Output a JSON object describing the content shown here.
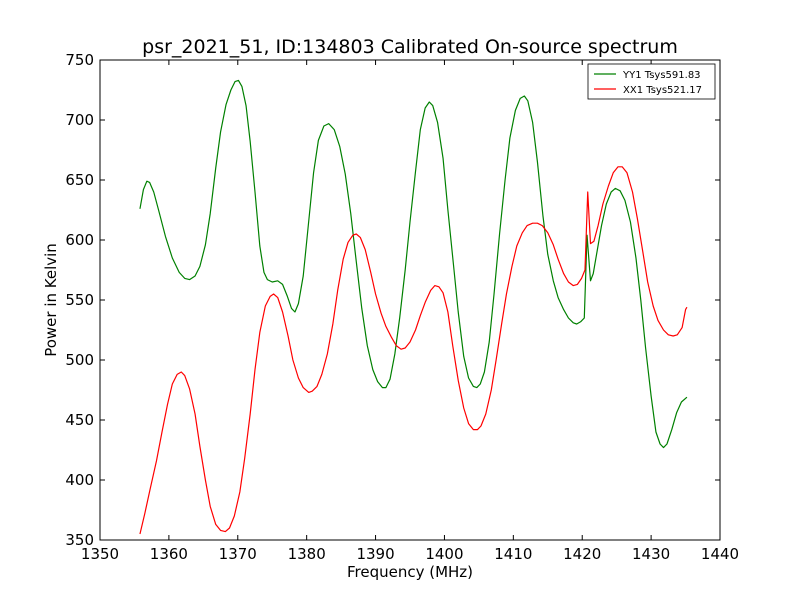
{
  "chart_data": {
    "type": "line",
    "title": "psr_2021_51, ID:134803 Calibrated On-source spectrum",
    "xlabel": "Frequency (MHz)",
    "ylabel": "Power in Kelvin",
    "xlim": [
      1350,
      1440
    ],
    "ylim": [
      350,
      750
    ],
    "xticks": [
      1350,
      1360,
      1370,
      1380,
      1390,
      1400,
      1410,
      1420,
      1430,
      1440
    ],
    "yticks": [
      350,
      400,
      450,
      500,
      550,
      600,
      650,
      700,
      750
    ],
    "grid": false,
    "legend_position": "top-right",
    "series": [
      {
        "name": "YY1 Tsys591.83",
        "color": "#008000",
        "points": [
          [
            1355.8,
            626
          ],
          [
            1356.3,
            642
          ],
          [
            1356.8,
            649
          ],
          [
            1357.2,
            648
          ],
          [
            1357.8,
            640
          ],
          [
            1358.5,
            625
          ],
          [
            1359.5,
            603
          ],
          [
            1360.5,
            585
          ],
          [
            1361.5,
            573
          ],
          [
            1362.3,
            568
          ],
          [
            1363.0,
            567
          ],
          [
            1363.8,
            570
          ],
          [
            1364.5,
            578
          ],
          [
            1365.3,
            596
          ],
          [
            1366.0,
            622
          ],
          [
            1366.8,
            660
          ],
          [
            1367.5,
            690
          ],
          [
            1368.3,
            713
          ],
          [
            1369.0,
            725
          ],
          [
            1369.6,
            732
          ],
          [
            1370.1,
            733
          ],
          [
            1370.6,
            728
          ],
          [
            1371.2,
            712
          ],
          [
            1371.8,
            682
          ],
          [
            1372.5,
            640
          ],
          [
            1373.2,
            595
          ],
          [
            1373.8,
            573
          ],
          [
            1374.3,
            567
          ],
          [
            1375.0,
            565
          ],
          [
            1375.8,
            566
          ],
          [
            1376.5,
            563
          ],
          [
            1377.2,
            553
          ],
          [
            1377.8,
            543
          ],
          [
            1378.3,
            540
          ],
          [
            1378.8,
            547
          ],
          [
            1379.5,
            570
          ],
          [
            1380.2,
            610
          ],
          [
            1381.0,
            656
          ],
          [
            1381.7,
            683
          ],
          [
            1382.5,
            695
          ],
          [
            1383.2,
            697
          ],
          [
            1384.0,
            692
          ],
          [
            1384.8,
            678
          ],
          [
            1385.6,
            655
          ],
          [
            1386.4,
            622
          ],
          [
            1387.2,
            582
          ],
          [
            1388.0,
            543
          ],
          [
            1388.8,
            512
          ],
          [
            1389.6,
            492
          ],
          [
            1390.3,
            482
          ],
          [
            1391.0,
            477
          ],
          [
            1391.5,
            477
          ],
          [
            1392.1,
            484
          ],
          [
            1392.8,
            505
          ],
          [
            1393.5,
            535
          ],
          [
            1394.3,
            575
          ],
          [
            1395.0,
            615
          ],
          [
            1395.8,
            657
          ],
          [
            1396.5,
            692
          ],
          [
            1397.2,
            710
          ],
          [
            1397.8,
            715
          ],
          [
            1398.3,
            712
          ],
          [
            1399.0,
            698
          ],
          [
            1399.8,
            668
          ],
          [
            1400.5,
            625
          ],
          [
            1401.3,
            580
          ],
          [
            1402.0,
            540
          ],
          [
            1402.8,
            503
          ],
          [
            1403.5,
            485
          ],
          [
            1404.2,
            478
          ],
          [
            1404.7,
            477
          ],
          [
            1405.2,
            480
          ],
          [
            1405.8,
            490
          ],
          [
            1406.5,
            515
          ],
          [
            1407.2,
            555
          ],
          [
            1408.0,
            605
          ],
          [
            1408.8,
            650
          ],
          [
            1409.5,
            685
          ],
          [
            1410.3,
            708
          ],
          [
            1411.0,
            718
          ],
          [
            1411.6,
            720
          ],
          [
            1412.1,
            716
          ],
          [
            1412.8,
            698
          ],
          [
            1413.5,
            665
          ],
          [
            1414.3,
            620
          ],
          [
            1415.0,
            588
          ],
          [
            1415.8,
            566
          ],
          [
            1416.5,
            552
          ],
          [
            1417.3,
            542
          ],
          [
            1418.0,
            535
          ],
          [
            1418.7,
            531
          ],
          [
            1419.2,
            530
          ],
          [
            1419.8,
            532
          ],
          [
            1420.3,
            535
          ],
          [
            1420.7,
            604
          ],
          [
            1421.2,
            566
          ],
          [
            1421.6,
            572
          ],
          [
            1422.2,
            592
          ],
          [
            1422.8,
            612
          ],
          [
            1423.5,
            630
          ],
          [
            1424.2,
            640
          ],
          [
            1424.8,
            643
          ],
          [
            1425.5,
            641
          ],
          [
            1426.2,
            633
          ],
          [
            1427.0,
            615
          ],
          [
            1427.8,
            585
          ],
          [
            1428.5,
            550
          ],
          [
            1429.2,
            510
          ],
          [
            1430.0,
            470
          ],
          [
            1430.7,
            440
          ],
          [
            1431.3,
            430
          ],
          [
            1431.8,
            427
          ],
          [
            1432.3,
            430
          ],
          [
            1433.0,
            442
          ],
          [
            1433.7,
            456
          ],
          [
            1434.4,
            465
          ],
          [
            1435.2,
            469
          ]
        ]
      },
      {
        "name": "XX1 Tsys521.17",
        "color": "#ff0000",
        "points": [
          [
            1355.8,
            355
          ],
          [
            1356.5,
            372
          ],
          [
            1357.3,
            393
          ],
          [
            1358.2,
            416
          ],
          [
            1359.0,
            440
          ],
          [
            1359.8,
            463
          ],
          [
            1360.5,
            480
          ],
          [
            1361.2,
            488
          ],
          [
            1361.8,
            490
          ],
          [
            1362.3,
            487
          ],
          [
            1363.0,
            476
          ],
          [
            1363.8,
            455
          ],
          [
            1364.5,
            428
          ],
          [
            1365.3,
            400
          ],
          [
            1366.0,
            378
          ],
          [
            1366.8,
            363
          ],
          [
            1367.5,
            358
          ],
          [
            1368.2,
            357
          ],
          [
            1368.8,
            360
          ],
          [
            1369.5,
            370
          ],
          [
            1370.3,
            390
          ],
          [
            1371.0,
            418
          ],
          [
            1371.8,
            455
          ],
          [
            1372.5,
            492
          ],
          [
            1373.2,
            523
          ],
          [
            1374.0,
            545
          ],
          [
            1374.7,
            553
          ],
          [
            1375.2,
            555
          ],
          [
            1375.8,
            552
          ],
          [
            1376.5,
            540
          ],
          [
            1377.3,
            520
          ],
          [
            1378.0,
            500
          ],
          [
            1378.8,
            485
          ],
          [
            1379.5,
            477
          ],
          [
            1380.3,
            473
          ],
          [
            1380.8,
            474
          ],
          [
            1381.5,
            478
          ],
          [
            1382.2,
            488
          ],
          [
            1383.0,
            505
          ],
          [
            1383.8,
            530
          ],
          [
            1384.5,
            558
          ],
          [
            1385.3,
            584
          ],
          [
            1386.0,
            598
          ],
          [
            1386.7,
            604
          ],
          [
            1387.2,
            605
          ],
          [
            1387.8,
            602
          ],
          [
            1388.5,
            592
          ],
          [
            1389.3,
            573
          ],
          [
            1390.0,
            555
          ],
          [
            1390.8,
            539
          ],
          [
            1391.5,
            528
          ],
          [
            1392.3,
            519
          ],
          [
            1393.0,
            512
          ],
          [
            1393.7,
            509
          ],
          [
            1394.3,
            510
          ],
          [
            1395.0,
            515
          ],
          [
            1395.8,
            525
          ],
          [
            1396.5,
            537
          ],
          [
            1397.2,
            548
          ],
          [
            1398.0,
            558
          ],
          [
            1398.6,
            562
          ],
          [
            1399.2,
            561
          ],
          [
            1399.8,
            556
          ],
          [
            1400.5,
            540
          ],
          [
            1401.2,
            512
          ],
          [
            1402.0,
            483
          ],
          [
            1402.8,
            460
          ],
          [
            1403.5,
            447
          ],
          [
            1404.2,
            442
          ],
          [
            1404.8,
            442
          ],
          [
            1405.3,
            445
          ],
          [
            1406.0,
            455
          ],
          [
            1406.8,
            475
          ],
          [
            1407.5,
            500
          ],
          [
            1408.3,
            530
          ],
          [
            1409.0,
            555
          ],
          [
            1409.8,
            578
          ],
          [
            1410.5,
            595
          ],
          [
            1411.3,
            606
          ],
          [
            1412.0,
            612
          ],
          [
            1412.8,
            614
          ],
          [
            1413.5,
            614
          ],
          [
            1414.2,
            612
          ],
          [
            1415.0,
            606
          ],
          [
            1415.8,
            596
          ],
          [
            1416.5,
            584
          ],
          [
            1417.3,
            572
          ],
          [
            1418.0,
            565
          ],
          [
            1418.7,
            562
          ],
          [
            1419.3,
            563
          ],
          [
            1419.9,
            568
          ],
          [
            1420.4,
            575
          ],
          [
            1420.8,
            640
          ],
          [
            1421.2,
            597
          ],
          [
            1421.7,
            599
          ],
          [
            1422.3,
            612
          ],
          [
            1423.0,
            630
          ],
          [
            1423.8,
            645
          ],
          [
            1424.5,
            656
          ],
          [
            1425.2,
            661
          ],
          [
            1425.8,
            661
          ],
          [
            1426.5,
            656
          ],
          [
            1427.3,
            640
          ],
          [
            1428.0,
            618
          ],
          [
            1428.8,
            590
          ],
          [
            1429.5,
            565
          ],
          [
            1430.3,
            545
          ],
          [
            1431.0,
            533
          ],
          [
            1431.8,
            525
          ],
          [
            1432.5,
            521
          ],
          [
            1433.2,
            520
          ],
          [
            1433.8,
            521
          ],
          [
            1434.5,
            527
          ],
          [
            1435.0,
            542
          ],
          [
            1435.2,
            544
          ]
        ]
      }
    ]
  }
}
